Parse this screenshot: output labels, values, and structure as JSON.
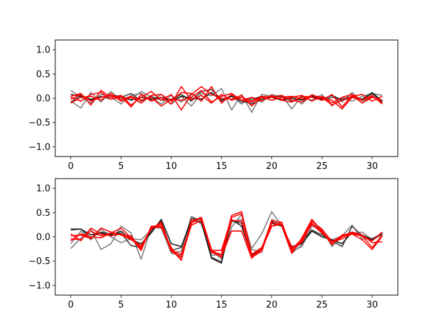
{
  "chart_data": [
    {
      "type": "line",
      "xlim": [
        -1.55,
        32.55
      ],
      "ylim": [
        -1.2,
        1.2
      ],
      "xticks": [
        0,
        5,
        10,
        15,
        20,
        25,
        30
      ],
      "yticks": [
        -1.0,
        -0.5,
        0.0,
        0.5,
        1.0
      ],
      "xtick_labels": [
        "0",
        "5",
        "10",
        "15",
        "20",
        "25",
        "30"
      ],
      "ytick_labels": [
        "−1.0",
        "−0.5",
        "0.0",
        "0.5",
        "1.0"
      ],
      "grid": false,
      "x": [
        0,
        1,
        2,
        3,
        4,
        5,
        6,
        7,
        8,
        9,
        10,
        11,
        12,
        13,
        14,
        15,
        16,
        17,
        18,
        19,
        20,
        21,
        22,
        23,
        24,
        25,
        26,
        27,
        28,
        29,
        30,
        31
      ],
      "series": [
        {
          "color": "#7f7f7f",
          "values": [
            0.16,
            0.02,
            -0.1,
            0.08,
            0.03,
            -0.12,
            0.06,
            0.1,
            -0.04,
            0.08,
            -0.12,
            0.04,
            -0.16,
            0.1,
            0.05,
            0.2,
            -0.24,
            0.08,
            -0.29,
            0.08,
            0.04,
            0.06,
            -0.22,
            0.05,
            -0.04,
            0.08,
            -0.16,
            0.02,
            -0.06,
            0.04,
            0.1,
            0.06
          ]
        },
        {
          "color": "#7f7f7f",
          "values": [
            -0.06,
            -0.2,
            0.12,
            -0.08,
            0.14,
            -0.04,
            -0.02,
            0.14,
            0.02,
            -0.12,
            0.06,
            -0.08,
            0.1,
            -0.02,
            0.12,
            -0.04,
            0.06,
            -0.12,
            0.02,
            -0.08,
            0.08,
            0.02,
            0.04,
            -0.12,
            0.08,
            -0.02,
            0.06,
            -0.08,
            0.12,
            -0.06,
            0.02,
            -0.04
          ]
        },
        {
          "color": "#404040",
          "values": [
            -0.08,
            0.06,
            -0.04,
            0.04,
            -0.02,
            0.02,
            0.1,
            -0.06,
            0.04,
            -0.04,
            -0.02,
            0.08,
            -0.06,
            0.14,
            0.18,
            -0.02,
            0.04,
            -0.08,
            -0.02,
            0.04,
            0.02,
            0.04,
            -0.06,
            0.02,
            0.04,
            -0.04,
            0.02,
            -0.02,
            0.04,
            -0.02,
            0.12,
            -0.06
          ]
        },
        {
          "color": "#202020",
          "values": [
            0.08,
            0.04,
            -0.02,
            0.02,
            0.06,
            0.04,
            -0.04,
            0.02,
            -0.02,
            0.02,
            -0.04,
            0.04,
            0.0,
            -0.02,
            0.12,
            -0.06,
            0.04,
            -0.04,
            -0.12,
            -0.02,
            0.02,
            -0.04,
            0.0,
            -0.04,
            0.04,
            -0.02,
            0.06,
            -0.04,
            0.02,
            -0.02,
            0.1,
            -0.08
          ]
        },
        {
          "color": "#ff0000",
          "values": [
            0.04,
            0.1,
            -0.14,
            0.16,
            0.02,
            0.06,
            -0.14,
            0.02,
            0.14,
            -0.04,
            0.08,
            -0.24,
            0.08,
            0.24,
            0.08,
            0.0,
            -0.02,
            0.06,
            -0.16,
            0.02,
            0.04,
            -0.02,
            0.02,
            0.06,
            -0.06,
            0.04,
            -0.1,
            0.02,
            0.08,
            -0.04,
            0.06,
            -0.12
          ]
        },
        {
          "color": "#ff0000",
          "values": [
            -0.1,
            0.02,
            0.04,
            -0.04,
            0.1,
            -0.06,
            0.02,
            -0.1,
            0.06,
            0.08,
            -0.06,
            0.12,
            0.1,
            -0.06,
            0.24,
            -0.1,
            0.08,
            -0.04,
            0.02,
            -0.06,
            0.06,
            -0.04,
            -0.08,
            0.04,
            0.02,
            -0.04,
            0.08,
            -0.18,
            0.06,
            -0.1,
            0.02,
            -0.04
          ]
        },
        {
          "color": "#ff0000",
          "values": [
            0.02,
            -0.06,
            0.08,
            0.12,
            -0.02,
            0.04,
            -0.18,
            0.08,
            -0.06,
            0.02,
            -0.12,
            0.24,
            -0.04,
            0.06,
            -0.1,
            0.08,
            -0.04,
            0.02,
            -0.06,
            0.04,
            0.02,
            0.06,
            -0.04,
            -0.08,
            0.06,
            0.02,
            -0.14,
            -0.04,
            0.04,
            0.08,
            -0.06,
            0.04
          ]
        },
        {
          "color": "#ff0000",
          "values": [
            -0.02,
            0.08,
            -0.06,
            0.02,
            0.06,
            -0.02,
            0.04,
            -0.04,
            0.02,
            -0.16,
            -0.02,
            -0.04,
            0.02,
            0.16,
            -0.08,
            0.04,
            0.1,
            -0.04,
            -0.08,
            0.02,
            -0.04,
            0.02,
            0.04,
            -0.02,
            0.06,
            0.0,
            -0.04,
            -0.22,
            0.02,
            -0.04,
            0.04,
            -0.1
          ]
        }
      ]
    },
    {
      "type": "line",
      "xlim": [
        -1.55,
        32.55
      ],
      "ylim": [
        -1.2,
        1.2
      ],
      "xticks": [
        0,
        5,
        10,
        15,
        20,
        25,
        30
      ],
      "yticks": [
        -1.0,
        -0.5,
        0.0,
        0.5,
        1.0
      ],
      "xtick_labels": [
        "0",
        "5",
        "10",
        "15",
        "20",
        "25",
        "30"
      ],
      "ytick_labels": [
        "−1.0",
        "−0.5",
        "0.0",
        "0.5",
        "1.0"
      ],
      "grid": false,
      "x": [
        0,
        1,
        2,
        3,
        4,
        5,
        6,
        7,
        8,
        9,
        10,
        11,
        12,
        13,
        14,
        15,
        16,
        17,
        18,
        19,
        20,
        21,
        22,
        23,
        24,
        25,
        26,
        27,
        28,
        29,
        30,
        31
      ],
      "series": [
        {
          "color": "#7f7f7f",
          "values": [
            -0.24,
            -0.02,
            0.16,
            -0.26,
            -0.14,
            0.22,
            0.08,
            -0.46,
            0.2,
            0.18,
            -0.34,
            -0.38,
            0.42,
            0.26,
            -0.28,
            -0.46,
            0.2,
            0.46,
            -0.24,
            0.06,
            0.52,
            0.22,
            -0.34,
            -0.16,
            0.36,
            0.06,
            -0.06,
            0.02,
            0.06,
            0.1,
            -0.06,
            0.04
          ]
        },
        {
          "color": "#7f7f7f",
          "values": [
            -0.14,
            0.12,
            -0.06,
            0.16,
            0.0,
            -0.12,
            -0.04,
            -0.06,
            0.14,
            0.28,
            -0.32,
            -0.3,
            0.42,
            0.32,
            -0.38,
            -0.36,
            0.3,
            0.36,
            -0.26,
            -0.32,
            0.36,
            0.24,
            -0.3,
            -0.2,
            0.22,
            0.16,
            -0.2,
            0.02,
            0.24,
            -0.04,
            -0.04,
            0.08
          ]
        },
        {
          "color": "#404040",
          "values": [
            0.14,
            0.16,
            -0.02,
            0.1,
            0.06,
            0.08,
            -0.18,
            -0.22,
            0.12,
            0.32,
            -0.28,
            -0.22,
            0.38,
            0.36,
            -0.42,
            -0.52,
            0.34,
            0.28,
            -0.36,
            -0.24,
            0.28,
            0.22,
            -0.32,
            -0.08,
            0.14,
            0.04,
            -0.08,
            -0.2,
            0.22,
            0.02,
            -0.04,
            0.06
          ]
        },
        {
          "color": "#202020",
          "values": [
            0.16,
            0.16,
            0.04,
            0.08,
            0.04,
            0.12,
            -0.06,
            -0.14,
            0.08,
            0.36,
            -0.14,
            -0.2,
            0.34,
            0.3,
            -0.44,
            -0.54,
            0.36,
            0.22,
            -0.38,
            -0.26,
            0.32,
            0.22,
            -0.2,
            -0.14,
            0.12,
            0.0,
            -0.06,
            -0.14,
            0.1,
            0.04,
            -0.06,
            0.08
          ]
        },
        {
          "color": "#ff0000",
          "values": [
            0.06,
            -0.08,
            0.18,
            0.06,
            0.02,
            0.06,
            -0.02,
            -0.22,
            0.2,
            0.2,
            -0.26,
            -0.48,
            0.34,
            0.38,
            -0.32,
            -0.4,
            0.12,
            0.12,
            -0.44,
            -0.24,
            0.34,
            0.3,
            -0.3,
            -0.08,
            0.26,
            0.08,
            -0.1,
            -0.04,
            0.06,
            0.02,
            -0.08,
            0.1
          ]
        },
        {
          "color": "#ff0000",
          "values": [
            -0.04,
            -0.06,
            0.12,
            0.02,
            0.08,
            0.04,
            0.02,
            -0.26,
            0.2,
            0.26,
            -0.3,
            -0.42,
            0.24,
            0.34,
            -0.28,
            -0.28,
            0.4,
            0.48,
            -0.4,
            -0.26,
            0.22,
            0.3,
            -0.26,
            -0.04,
            0.32,
            0.16,
            -0.1,
            0.02,
            0.1,
            0.04,
            -0.12,
            -0.1
          ]
        },
        {
          "color": "#ff0000",
          "values": [
            0.02,
            0.04,
            -0.04,
            0.18,
            0.1,
            0.04,
            -0.06,
            -0.18,
            0.16,
            0.3,
            -0.28,
            -0.36,
            0.28,
            0.4,
            -0.3,
            -0.36,
            0.44,
            0.52,
            -0.36,
            -0.22,
            0.22,
            0.26,
            -0.22,
            -0.12,
            0.28,
            0.1,
            -0.14,
            0.0,
            0.08,
            0.02,
            -0.22,
            0.04
          ]
        },
        {
          "color": "#ff0000",
          "values": [
            -0.08,
            0.06,
            0.0,
            -0.02,
            0.08,
            0.18,
            -0.02,
            -0.28,
            0.22,
            0.22,
            -0.22,
            -0.48,
            0.32,
            0.4,
            -0.26,
            -0.42,
            0.34,
            0.32,
            -0.42,
            -0.3,
            0.3,
            0.24,
            -0.34,
            -0.02,
            0.36,
            0.12,
            -0.16,
            0.04,
            0.06,
            -0.06,
            -0.26,
            0.02
          ]
        }
      ]
    }
  ]
}
